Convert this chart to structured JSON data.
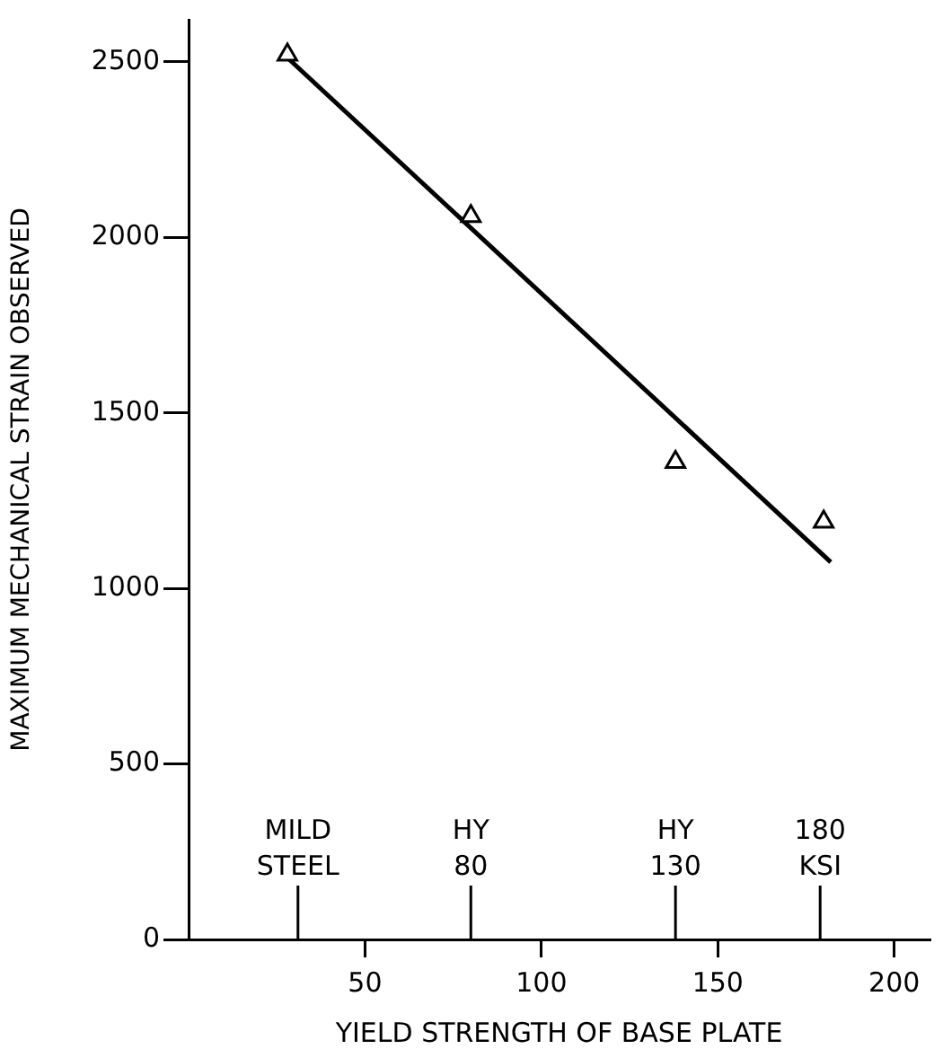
{
  "chart_data": {
    "type": "scatter",
    "xlabel": "YIELD STRENGTH OF BASE PLATE",
    "ylabel": "MAXIMUM MECHANICAL STRAIN OBSERVED",
    "xlim": [
      0,
      210
    ],
    "ylim": [
      0,
      2620
    ],
    "xticks": [
      50,
      100,
      150,
      200
    ],
    "yticks": [
      0,
      500,
      1000,
      1500,
      2000,
      2500
    ],
    "grid": false,
    "legend": false,
    "series": [
      {
        "type": "scatter",
        "marker": "triangle",
        "color": "#000000",
        "x": [
          28,
          80,
          138,
          180
        ],
        "values": [
          2520,
          2060,
          1360,
          1190
        ]
      },
      {
        "type": "line",
        "marker": "none",
        "line_style": "solid",
        "color": "#000000",
        "x": [
          28,
          182
        ],
        "values": [
          2512,
          1075
        ]
      }
    ],
    "ref_lines": [
      {
        "axis": "x",
        "value": 31,
        "label": "MILD\nSTEEL"
      },
      {
        "axis": "x",
        "value": 80,
        "label": "HY\n80"
      },
      {
        "axis": "x",
        "value": 138,
        "label": "HY\n130"
      },
      {
        "axis": "x",
        "value": 179,
        "label": "180\nKSI"
      }
    ]
  }
}
